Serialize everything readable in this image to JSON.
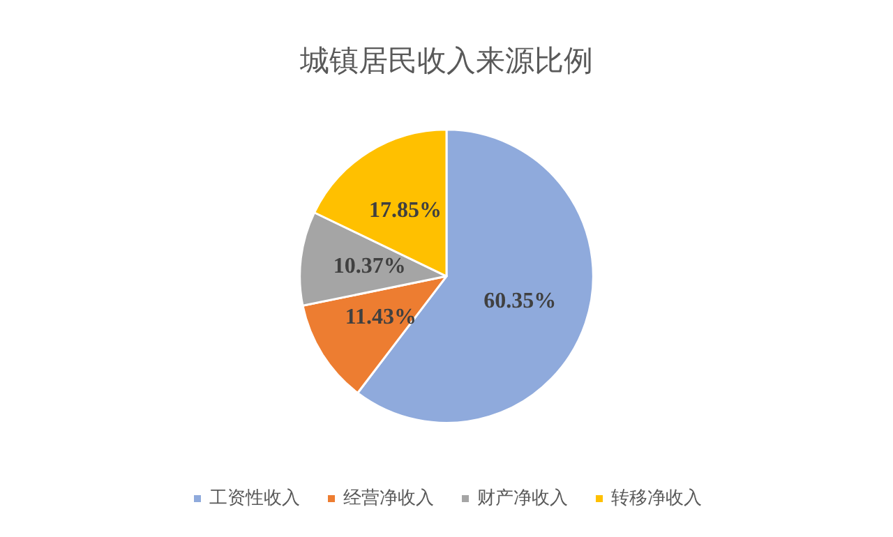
{
  "chart_data": {
    "type": "pie",
    "title": "城镇居民收入来源比例",
    "categories": [
      "工资性收入",
      "经营净收入",
      "财产净收入",
      "转移净收入"
    ],
    "values": [
      60.35,
      11.43,
      10.37,
      17.85
    ],
    "value_labels": [
      "60.35%",
      "11.43%",
      "10.37%",
      "17.85%"
    ],
    "colors": [
      "#8faadc",
      "#ed7d31",
      "#a5a5a5",
      "#ffc000"
    ],
    "legend": "bottom"
  }
}
